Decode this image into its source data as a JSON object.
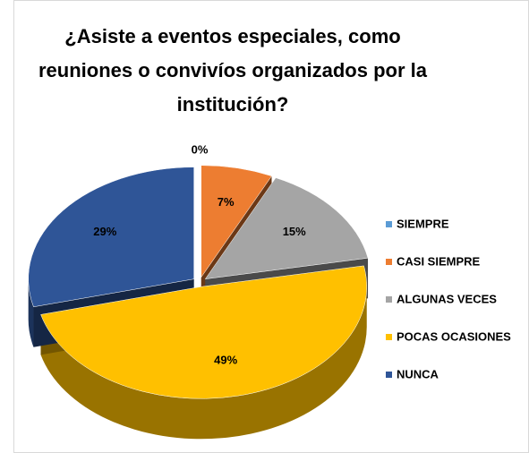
{
  "chart_data": {
    "type": "pie3d",
    "title": "¿Asiste a eventos especiales, como reuniones o convivíos organizados por la institución?",
    "categories": [
      "SIEMPRE",
      "CASI SIEMPRE",
      "ALGUNAS VECES",
      "POCAS OCASIONES",
      "NUNCA"
    ],
    "values": [
      0,
      7,
      15,
      49,
      29
    ],
    "value_labels": [
      "0%",
      "7%",
      "15%",
      "49%",
      "29%"
    ],
    "colors": [
      "#5b9bd5",
      "#ed7d31",
      "#a5a5a5",
      "#ffc000",
      "#2f5597"
    ],
    "legend": "right"
  }
}
